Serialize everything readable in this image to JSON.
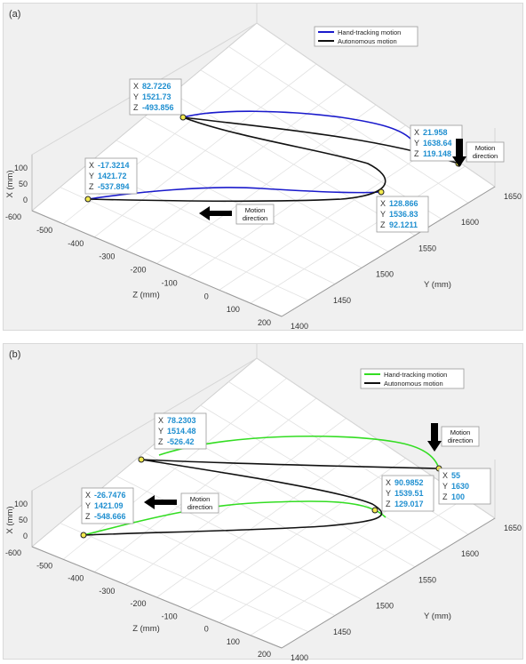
{
  "chart_data": [
    {
      "panel": "(a)",
      "type": "line3d",
      "axes": {
        "x": {
          "label": "X (mm)",
          "ticks": [
            "100",
            "50",
            "0"
          ]
        },
        "y": {
          "label": "Y (mm)",
          "ticks": [
            "1400",
            "1450",
            "1500",
            "1550",
            "1600",
            "1650"
          ]
        },
        "z": {
          "label": "Z (mm)",
          "ticks": [
            "-600",
            "-500",
            "-400",
            "-300",
            "-200",
            "-100",
            "0",
            "100",
            "200"
          ]
        }
      },
      "legend": [
        "Hand-tracking motion",
        "Autonomous motion"
      ],
      "colors": {
        "hand": "#1a1acc",
        "auto": "#111111"
      },
      "datatips": [
        {
          "X": "82.7226",
          "Y": "1521.73",
          "Z": "-493.856"
        },
        {
          "X": "21.958",
          "Y": "1638.64",
          "Z": "119.148"
        },
        {
          "X": "-17.3214",
          "Y": "1421.72",
          "Z": "-537.894"
        },
        {
          "X": "128.866",
          "Y": "1536.83",
          "Z": "92.1211"
        }
      ],
      "annotations": [
        "Motion direction",
        "Motion direction"
      ]
    },
    {
      "panel": "(b)",
      "type": "line3d",
      "axes": {
        "x": {
          "label": "X (mm)",
          "ticks": [
            "100",
            "50",
            "0"
          ]
        },
        "y": {
          "label": "Y (mm)",
          "ticks": [
            "1400",
            "1450",
            "1500",
            "1550",
            "1600",
            "1650"
          ]
        },
        "z": {
          "label": "Z (mm)",
          "ticks": [
            "-600",
            "-500",
            "-400",
            "-300",
            "-200",
            "-100",
            "0",
            "100",
            "200"
          ]
        }
      },
      "legend": [
        "Hand-tracking motion",
        "Autonomous motion"
      ],
      "colors": {
        "hand": "#33dd22",
        "auto": "#111111"
      },
      "datatips": [
        {
          "X": "78.2303",
          "Y": "1514.48",
          "Z": "-526.42"
        },
        {
          "X": "55",
          "Y": "1630",
          "Z": "100"
        },
        {
          "X": "-26.7476",
          "Y": "1421.09",
          "Z": "-548.666"
        },
        {
          "X": "90.9852",
          "Y": "1539.51",
          "Z": "129.017"
        }
      ],
      "annotations": [
        "Motion direction",
        "Motion direction"
      ]
    }
  ]
}
